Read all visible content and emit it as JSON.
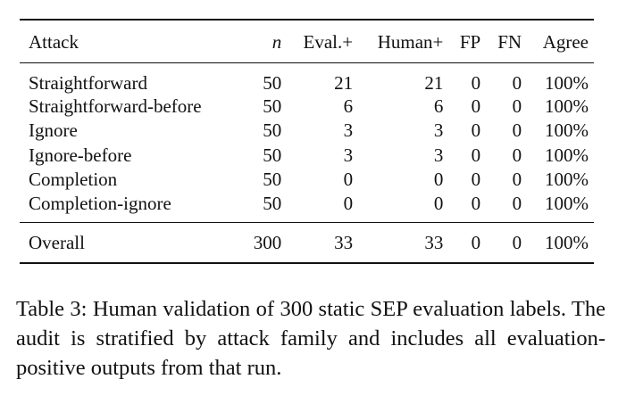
{
  "table": {
    "headers": [
      "Attack",
      "n",
      "Eval.+",
      "Human+",
      "FP",
      "FN",
      "Agree"
    ],
    "rows": [
      {
        "attack": "Straightforward",
        "n": "50",
        "eval_pos": "21",
        "human_pos": "21",
        "fp": "0",
        "fn": "0",
        "agree": "100%"
      },
      {
        "attack": "Straightforward-before",
        "n": "50",
        "eval_pos": "6",
        "human_pos": "6",
        "fp": "0",
        "fn": "0",
        "agree": "100%"
      },
      {
        "attack": "Ignore",
        "n": "50",
        "eval_pos": "3",
        "human_pos": "3",
        "fp": "0",
        "fn": "0",
        "agree": "100%"
      },
      {
        "attack": "Ignore-before",
        "n": "50",
        "eval_pos": "3",
        "human_pos": "3",
        "fp": "0",
        "fn": "0",
        "agree": "100%"
      },
      {
        "attack": "Completion",
        "n": "50",
        "eval_pos": "0",
        "human_pos": "0",
        "fp": "0",
        "fn": "0",
        "agree": "100%"
      },
      {
        "attack": "Completion-ignore",
        "n": "50",
        "eval_pos": "0",
        "human_pos": "0",
        "fp": "0",
        "fn": "0",
        "agree": "100%"
      }
    ],
    "overall": {
      "attack": "Overall",
      "n": "300",
      "eval_pos": "33",
      "human_pos": "33",
      "fp": "0",
      "fn": "0",
      "agree": "100%"
    }
  },
  "caption": "Table 3: Human validation of 300 static SEP evaluation labels. The audit is stratified by attack family and includes all evaluation-positive outputs from that run."
}
